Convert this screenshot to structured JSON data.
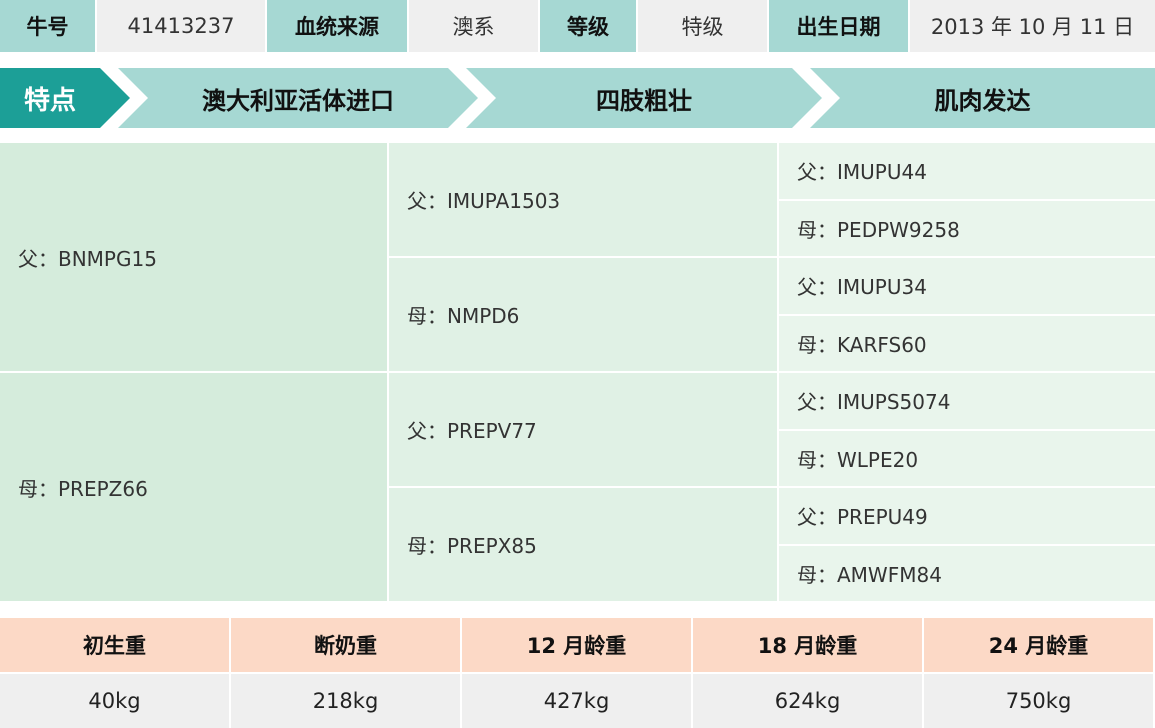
{
  "header": [
    {
      "label": "牛号",
      "value": "41413237"
    },
    {
      "label": "血统来源",
      "value": "澳系"
    },
    {
      "label": "等级",
      "value": "特级"
    },
    {
      "label": "出生日期",
      "value": "2013 年 10 月 11 日"
    }
  ],
  "features": {
    "title": "特点",
    "items": [
      "澳大利亚活体进口",
      "四肢粗壮",
      "肌肉发达"
    ]
  },
  "pedigree": {
    "gen1": [
      "父：BNMPG15",
      "母：PREPZ66"
    ],
    "gen2": [
      "父：IMUPA1503",
      "母：NMPD6",
      "父：PREPV77",
      "母：PREPX85"
    ],
    "gen3": [
      "父：IMUPU44",
      "母：PEDPW9258",
      "父：IMUPU34",
      "母：KARFS60",
      "父：IMUPS5074",
      "母：WLPE20",
      "父：PREPU49",
      "母：AMWFM84"
    ]
  },
  "weights": {
    "headers": [
      "初生重",
      "断奶重",
      "12 月龄重",
      "18 月龄重",
      "24 月龄重"
    ],
    "values": [
      "40kg",
      "218kg",
      "427kg",
      "624kg",
      "750kg"
    ]
  },
  "colors": {
    "teal_dark": "#1c9f97",
    "teal_light": "#a6d8d3",
    "peach": "#fcd9c6",
    "green": "#d5ecdc"
  }
}
